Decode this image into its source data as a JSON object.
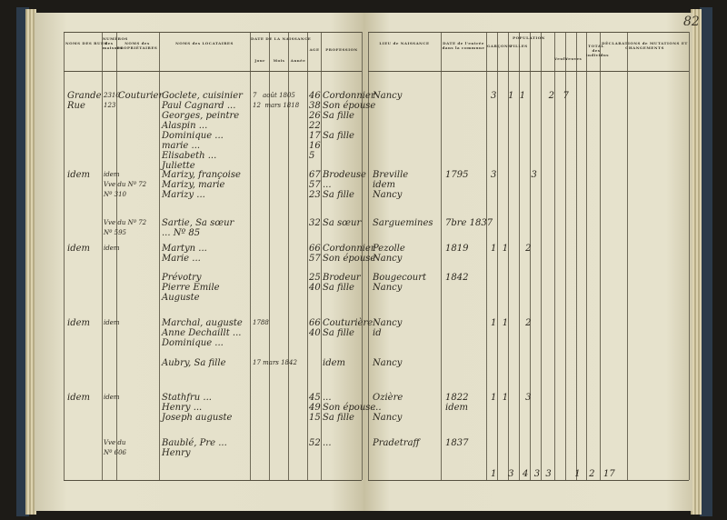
{
  "page_number": "82",
  "headers": {
    "street": "NOMS DES RUES",
    "numbers": "NUMÉROS des maisons",
    "owners": "NOMS des PROPRIÉTAIRES",
    "tenants": "NOMS des LOCATAIRES",
    "birth_date": "DATE DE LA NAISSANCE",
    "day": "Jour",
    "month": "Mois",
    "year": "Année",
    "age": "AGE",
    "profession": "PROFESSION",
    "birthplace": "LIEU de NAISSANCE",
    "entry_date": "DATE de l'entrée dans la commune",
    "population": "POPULATION",
    "boys": "GARÇONS",
    "girls": "FILLES",
    "widowers": "Veufs",
    "widows": "Veuves",
    "total": "TOTAL des individus",
    "declarations": "DÉCLARATIONS de MUTATIONS ET CHANGEMENTS"
  },
  "entries": [
    {
      "street": "Grande\nRue",
      "number": "2316\n123",
      "owner": "Couturier",
      "tenants": "Goclete, cuisinier\nPaul Cagnard ...\nGeorges, peintre\nAlaspin ...\nDominique ...\nmarie ...\nElisabeth ...\nJuliette",
      "dates": "7   août 1805\n12  mars 1818",
      "ages": "46\n38\n26\n22\n17\n16\n5",
      "profession": "Cordonnier\nSon épouse\nSa fille\n\nSa fille",
      "birthplace": "Nancy",
      "entry": "",
      "population": "3    1  1        2   7"
    },
    {
      "street": "idem",
      "number": "idem\nVve du Nº 72\nNº 310",
      "owner": "",
      "tenants": "Marizy, françoise\nMarizy, marie\nMarizy ...",
      "dates": "",
      "ages": "67\n57\n23",
      "profession": "Brodeuse\n...\nSa fille",
      "birthplace": "Breville\nidem\nNancy",
      "entry": "1795",
      "population": "3            3"
    },
    {
      "street": "",
      "number": "Vve du Nº 72\nNº 595",
      "owner": "",
      "tenants": "Sartie, Sa sœur\n... Nº 85",
      "dates": "",
      "ages": "32",
      "profession": "Sa sœur",
      "birthplace": "Sarguemines",
      "entry": "7bre 1837",
      "population": ""
    },
    {
      "street": "idem",
      "number": "idem",
      "owner": "",
      "tenants": "Martyn ...\nMarie ...",
      "dates": "",
      "ages": "66\n57",
      "profession": "Cordonnier\nSon épouse",
      "birthplace": "Pezolle\nNancy",
      "entry": "1819",
      "population": "1  1      2"
    },
    {
      "street": "",
      "number": "",
      "owner": "",
      "tenants": "Prévotry\nPierre Emile\nAuguste",
      "dates": "",
      "ages": "25\n40",
      "profession": "Brodeur\nSa fille",
      "birthplace": "Bougecourt\nNancy",
      "entry": "1842",
      "population": ""
    },
    {
      "street": "idem",
      "number": "idem",
      "owner": "",
      "tenants": "Marchal, auguste\nAnne Dechaillt ...\nDominique ...\n\nAubry, Sa fille",
      "dates": "1788\n\n\n\n17 mars 1842",
      "ages": "66\n40",
      "profession": "Couturière\nSa fille\n\n\nidem",
      "birthplace": "Nancy\nid\n\n\nNancy",
      "entry": "",
      "population": "1  1      2"
    },
    {
      "street": "idem",
      "number": "idem",
      "owner": "",
      "tenants": "Stathfru ...\nHenry ...\nJoseph auguste",
      "dates": "",
      "ages": "45\n49\n15",
      "profession": "... \nSon épouse\nSa fille",
      "birthplace": "Ozière\n...\nNancy",
      "entry": "1822\nidem",
      "population": "1  1      3"
    },
    {
      "street": "",
      "number": "Vve du\nNº 606",
      "owner": "",
      "tenants": "Baublé, Pre ...\nHenry",
      "dates": "",
      "ages": "52",
      "profession": "...",
      "birthplace": "Pradetraff",
      "entry": "1837",
      "population": ""
    }
  ],
  "totals": "1    3   4  3  3        1   2   17"
}
